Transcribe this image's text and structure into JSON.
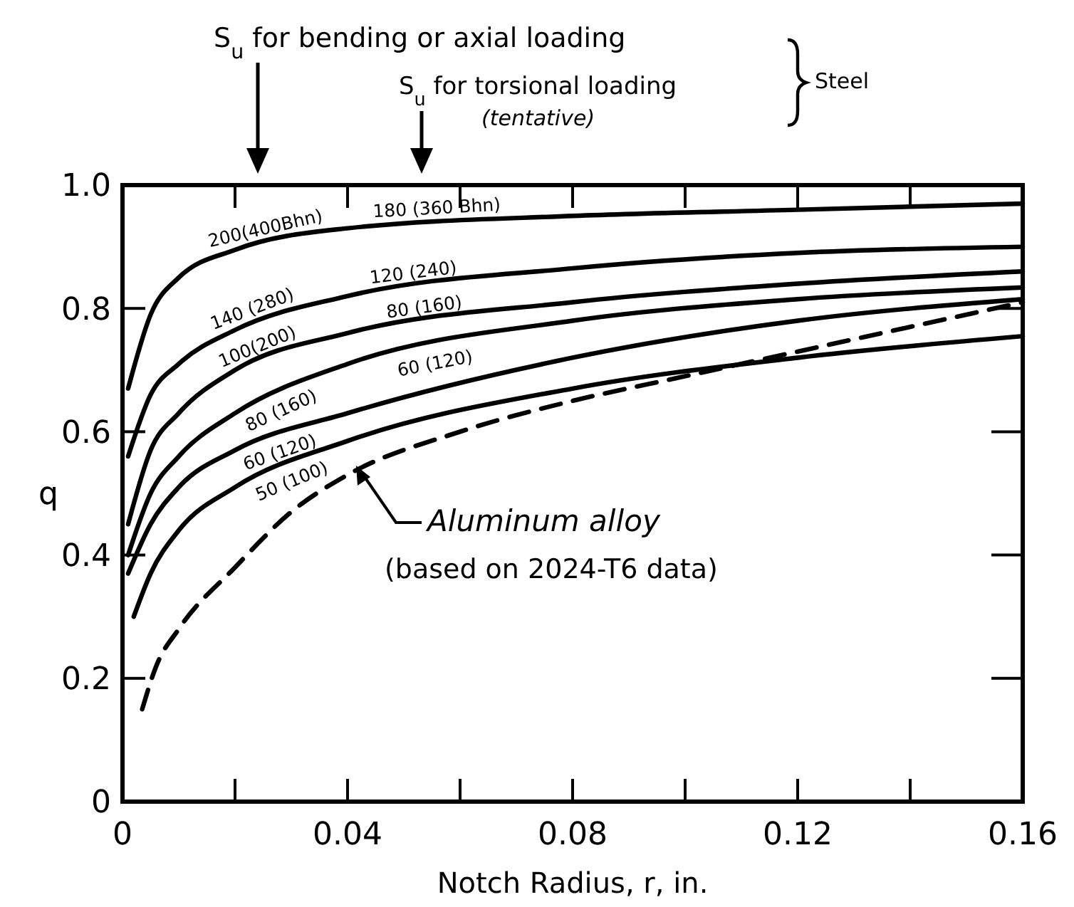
{
  "chart_data": {
    "type": "line",
    "xlabel": "Notch Radius, r, in.",
    "ylabel": "q",
    "xlim": [
      0,
      0.16
    ],
    "ylim": [
      0,
      1
    ],
    "xticks": [
      0,
      {
        "value": 0.02,
        "label": null
      },
      0.04,
      {
        "value": 0.06,
        "label": null
      },
      0.08,
      {
        "value": 0.1,
        "label": null
      },
      0.12,
      {
        "value": 0.14,
        "label": null
      },
      0.16
    ],
    "yticks": [
      0,
      0.2,
      0.4,
      0.6,
      0.8,
      {
        "value": 1,
        "label": "1.0"
      }
    ],
    "grid": false,
    "marker": "none",
    "series": [
      {
        "name": "200(400Bhn)",
        "color": "#000000",
        "x": [
          0.001,
          0.005,
          0.01,
          0.02,
          0.04,
          0.08,
          0.12,
          0.16
        ],
        "values": [
          0.67,
          0.79,
          0.85,
          0.895,
          0.93,
          0.95,
          0.96,
          0.97
        ]
      },
      {
        "name": "140 (280)",
        "color": "#000000",
        "x": [
          0.001,
          0.005,
          0.01,
          0.02,
          0.04,
          0.08,
          0.12,
          0.16
        ],
        "values": [
          0.56,
          0.66,
          0.71,
          0.765,
          0.82,
          0.865,
          0.89,
          0.9
        ]
      },
      {
        "name": "100(200)",
        "color": "#000000",
        "x": [
          0.001,
          0.005,
          0.01,
          0.02,
          0.04,
          0.08,
          0.12,
          0.16
        ],
        "values": [
          0.45,
          0.57,
          0.63,
          0.7,
          0.76,
          0.81,
          0.84,
          0.86
        ]
      },
      {
        "name": "80 (160)",
        "color": "#000000",
        "x": [
          0.001,
          0.005,
          0.01,
          0.02,
          0.04,
          0.08,
          0.12,
          0.16
        ],
        "values": [
          0.4,
          0.5,
          0.56,
          0.63,
          0.71,
          0.78,
          0.815,
          0.834
        ]
      },
      {
        "name": "60 (120)",
        "color": "#000000",
        "x": [
          0.001,
          0.005,
          0.01,
          0.02,
          0.04,
          0.08,
          0.12,
          0.16
        ],
        "values": [
          0.37,
          0.45,
          0.51,
          0.57,
          0.63,
          0.72,
          0.78,
          0.815
        ]
      },
      {
        "name": "50 (100)",
        "color": "#000000",
        "x": [
          0.002,
          0.005,
          0.01,
          0.02,
          0.04,
          0.08,
          0.12,
          0.16
        ],
        "values": [
          0.3,
          0.37,
          0.44,
          0.51,
          0.585,
          0.67,
          0.72,
          0.755
        ]
      },
      {
        "color": "#000000",
        "line_style": "dashed",
        "x": [
          0.0035,
          0.006,
          0.01,
          0.02,
          0.03,
          0.04,
          0.06,
          0.08,
          0.1,
          0.12,
          0.14,
          0.16
        ],
        "values": [
          0.15,
          0.22,
          0.28,
          0.38,
          0.47,
          0.53,
          0.6,
          0.65,
          0.69,
          0.73,
          0.77,
          0.81
        ]
      }
    ],
    "annotations": [
      "180 (360 Bhn)",
      "120 (240)",
      "80 (160)",
      "60 (120)",
      "S$_{u}$ for bending or axial loading",
      "S$_{u}$ for torsional loading",
      "(tentative)",
      "Steel",
      "Aluminum alloy",
      "(based on 2024-T6 data)"
    ]
  }
}
